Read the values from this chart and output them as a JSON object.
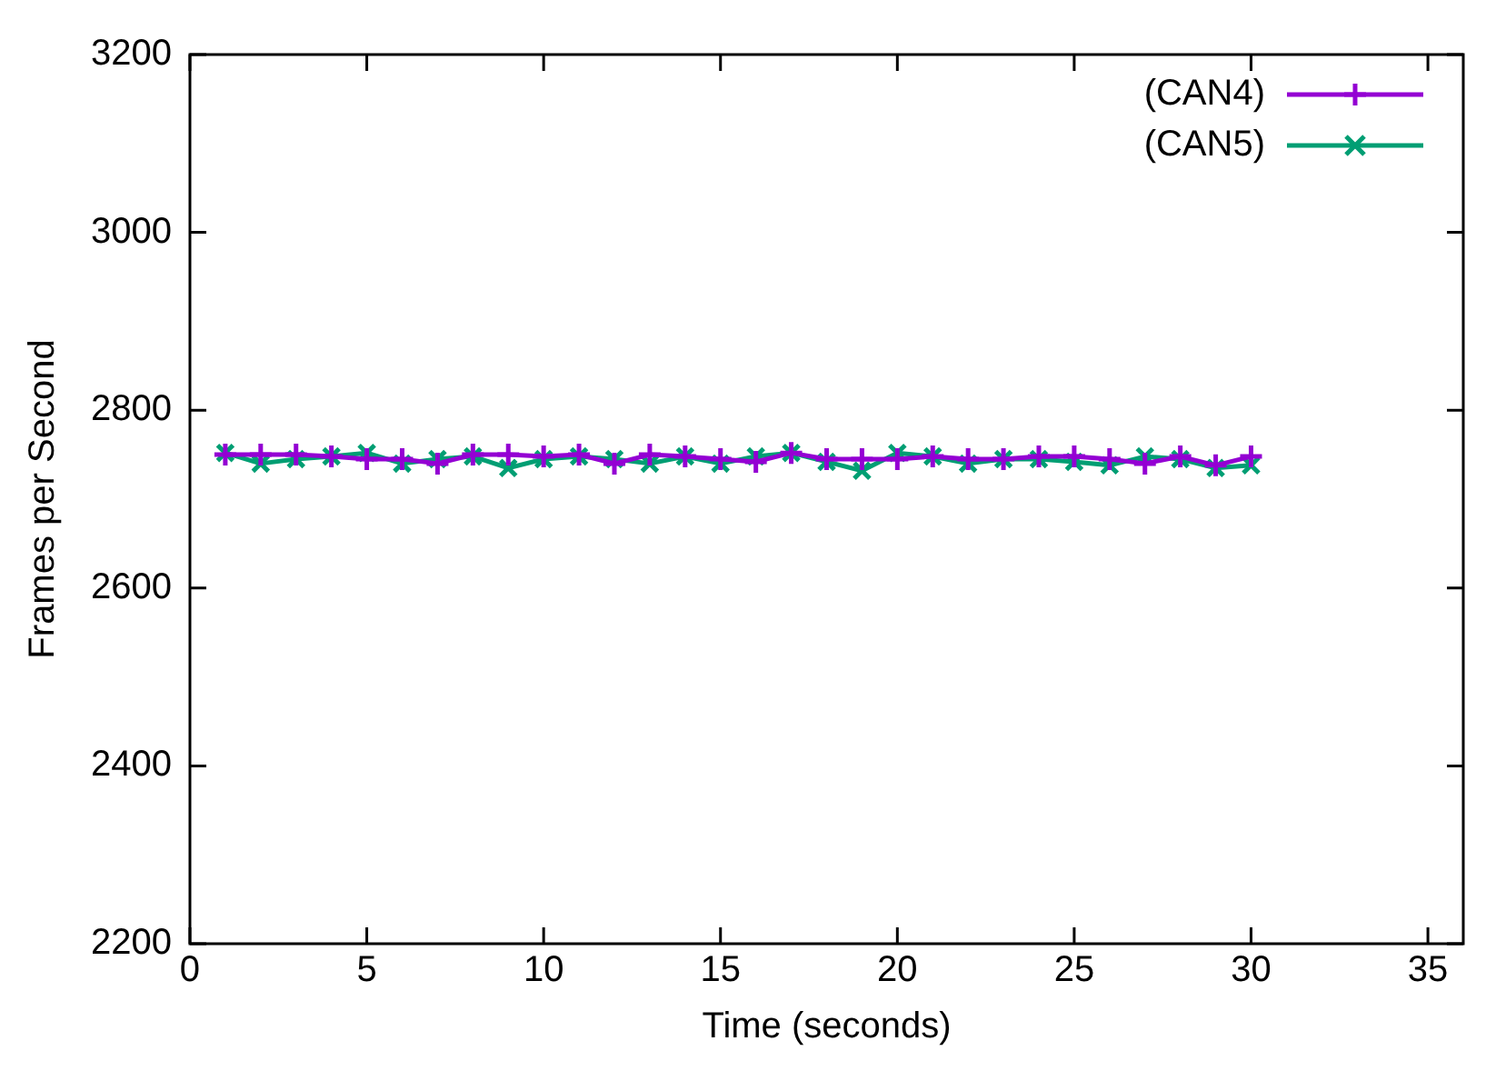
{
  "chart_data": {
    "type": "line",
    "xlabel": "Time (seconds)",
    "ylabel": "Frames per Second",
    "x": [
      1,
      2,
      3,
      4,
      5,
      6,
      7,
      8,
      9,
      10,
      11,
      12,
      13,
      14,
      15,
      16,
      17,
      18,
      19,
      20,
      21,
      22,
      23,
      24,
      25,
      26,
      27,
      28,
      29,
      30
    ],
    "series": [
      {
        "name": "(CAN4)",
        "color": "#9400d3",
        "marker": "cross",
        "values": [
          2750,
          2750,
          2750,
          2748,
          2745,
          2745,
          2740,
          2750,
          2750,
          2748,
          2750,
          2740,
          2750,
          2748,
          2745,
          2742,
          2752,
          2745,
          2745,
          2745,
          2748,
          2745,
          2745,
          2748,
          2748,
          2745,
          2740,
          2748,
          2738,
          2748
        ]
      },
      {
        "name": "(CAN5)",
        "color": "#009e73",
        "marker": "cross",
        "values": [
          2752,
          2740,
          2745,
          2748,
          2752,
          2740,
          2745,
          2748,
          2735,
          2745,
          2748,
          2745,
          2740,
          2748,
          2740,
          2748,
          2752,
          2742,
          2732,
          2752,
          2748,
          2740,
          2745,
          2745,
          2742,
          2738,
          2748,
          2745,
          2735,
          2738
        ]
      }
    ],
    "xlim": [
      0,
      36
    ],
    "xticks": [
      0,
      5,
      10,
      15,
      20,
      25,
      30,
      35
    ],
    "ylim": [
      2200,
      3200
    ],
    "yticks": [
      2200,
      2400,
      2600,
      2800,
      3000,
      3200
    ],
    "grid": false,
    "legend": "top right",
    "line_style": "solid"
  }
}
